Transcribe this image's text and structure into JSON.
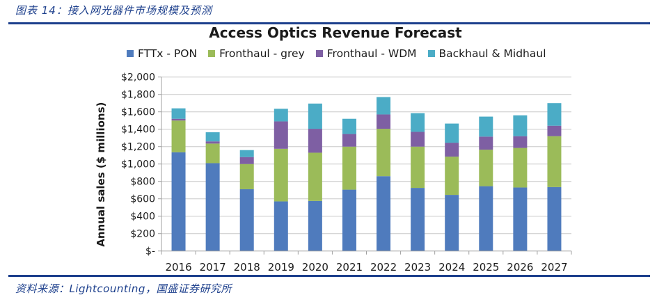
{
  "figure": {
    "caption": "图表 14：接入网光器件市场规模及预测",
    "source": "资料来源：Lightcounting，国盛证券研究所"
  },
  "chart_data": {
    "type": "bar",
    "stacked": true,
    "title": "Access Optics Revenue Forecast",
    "xlabel": "",
    "ylabel": "Annual sales ($ millions)",
    "ylim": [
      0,
      2000
    ],
    "yticks": [
      0,
      200,
      400,
      600,
      800,
      1000,
      1200,
      1400,
      1600,
      1800,
      2000
    ],
    "ytick_labels": [
      "$-",
      "$200",
      "$400",
      "$600",
      "$800",
      "$1,000",
      "$1,200",
      "$1,400",
      "$1,600",
      "$1,800",
      "$2,000"
    ],
    "grid": true,
    "legend_position": "top",
    "categories": [
      "2016",
      "2017",
      "2018",
      "2019",
      "2020",
      "2021",
      "2022",
      "2023",
      "2024",
      "2025",
      "2026",
      "2027"
    ],
    "series": [
      {
        "name": "FTTx - PON",
        "color": "#4f7bbd",
        "values": [
          1135,
          1010,
          710,
          570,
          575,
          705,
          860,
          725,
          645,
          745,
          730,
          735
        ]
      },
      {
        "name": "Fronthaul - grey",
        "color": "#9bbb59",
        "values": [
          365,
          225,
          290,
          605,
          555,
          495,
          545,
          475,
          440,
          420,
          455,
          585
        ]
      },
      {
        "name": "Fronthaul - WDM",
        "color": "#7e5fa3",
        "values": [
          20,
          25,
          80,
          315,
          275,
          145,
          165,
          170,
          160,
          150,
          135,
          120
        ]
      },
      {
        "name": "Backhaul & Midhaul",
        "color": "#4bacc6",
        "values": [
          120,
          105,
          80,
          145,
          290,
          175,
          200,
          215,
          220,
          230,
          240,
          260
        ]
      }
    ]
  }
}
